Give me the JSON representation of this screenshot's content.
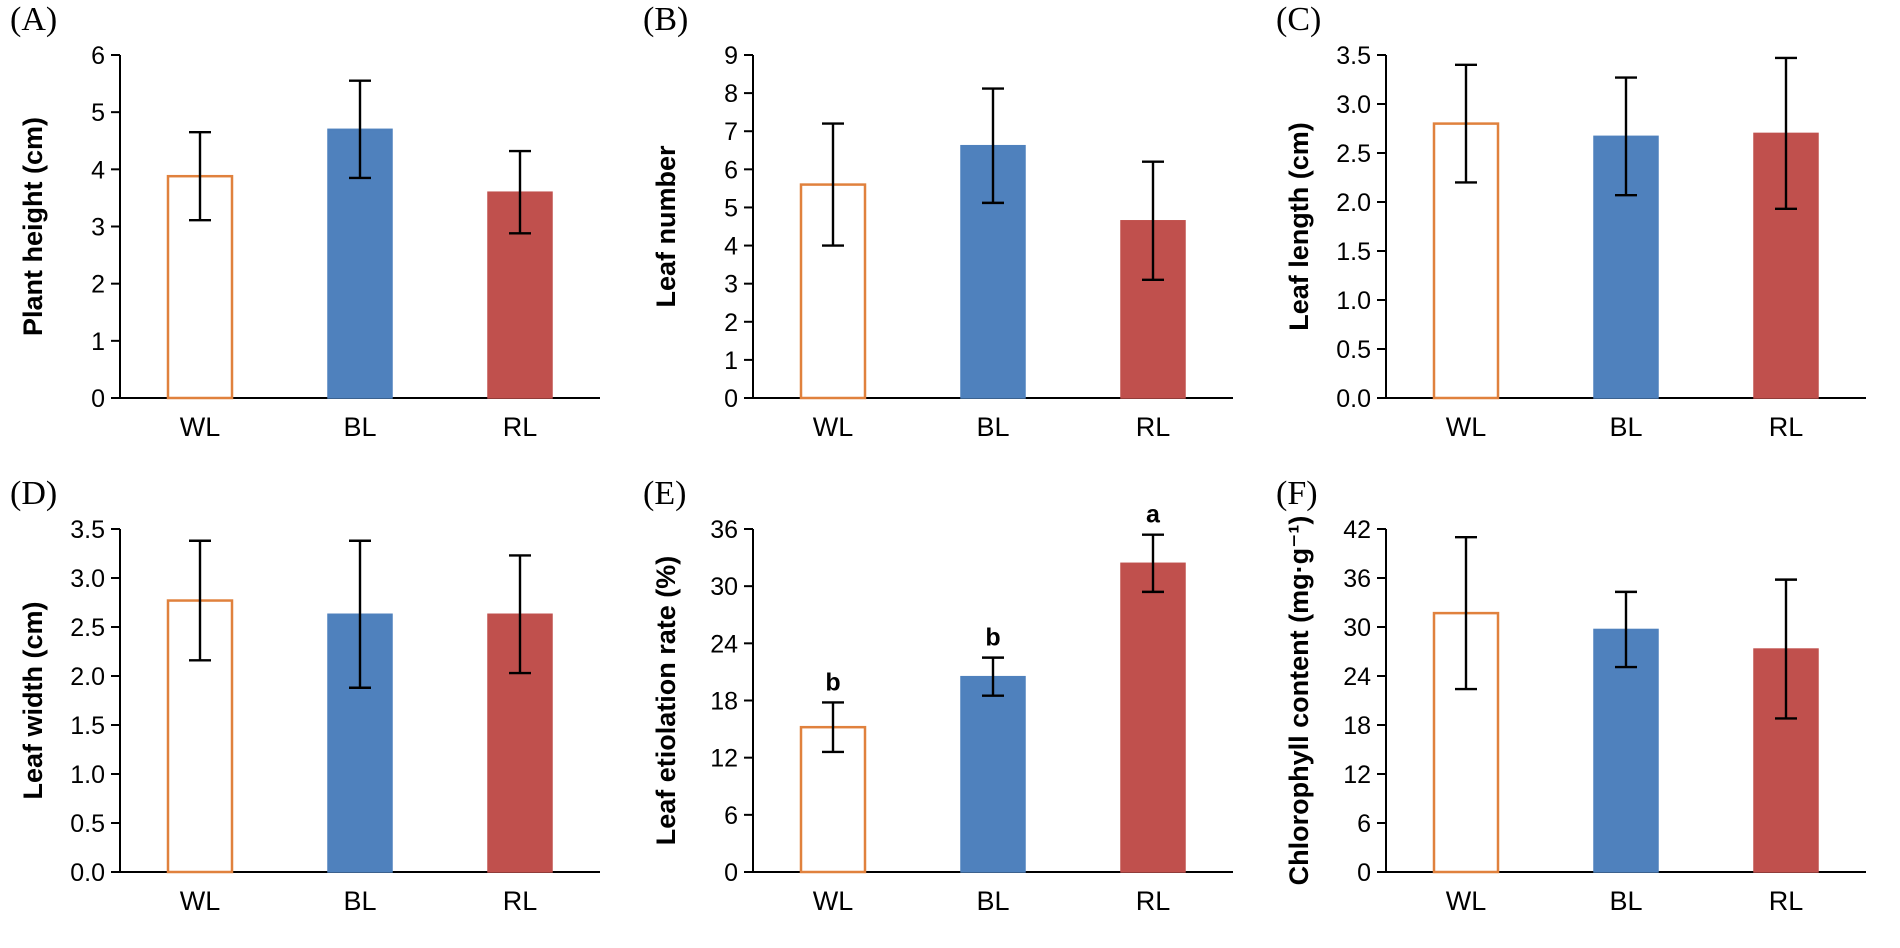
{
  "figure_title": "",
  "categories": [
    "WL",
    "BL",
    "RL"
  ],
  "bar_styles": [
    {
      "category": "WL",
      "fill": "#ffffff",
      "stroke": "#e0813d",
      "stroke_width": 2.5
    },
    {
      "category": "BL",
      "fill": "#4f81bd",
      "stroke": "#4f81bd",
      "stroke_width": 1.5
    },
    {
      "category": "RL",
      "fill": "#c0504d",
      "stroke": "#c0504d",
      "stroke_width": 1.5
    }
  ],
  "colors": {
    "axis": "#000000",
    "error_bar": "#000000",
    "text": "#000000",
    "background": "#ffffff"
  },
  "chart_data": [
    {
      "type": "bar",
      "panel_label": "(A)",
      "ylabel": "Plant height (cm)",
      "xlabel": "",
      "categories": [
        "WL",
        "BL",
        "RL"
      ],
      "values": [
        3.88,
        4.7,
        3.6
      ],
      "errors": [
        0.77,
        0.85,
        0.72
      ],
      "letters": [],
      "ylim": [
        0,
        6
      ],
      "yticks": [
        "0",
        "1",
        "2",
        "3",
        "4",
        "5",
        "6"
      ],
      "grid": false,
      "legend": "none"
    },
    {
      "type": "bar",
      "panel_label": "(B)",
      "ylabel": "Leaf number",
      "xlabel": "",
      "categories": [
        "WL",
        "BL",
        "RL"
      ],
      "values": [
        5.6,
        6.62,
        4.65
      ],
      "errors": [
        1.6,
        1.5,
        1.55
      ],
      "letters": [],
      "ylim": [
        0,
        9
      ],
      "yticks": [
        "0",
        "1",
        "2",
        "3",
        "4",
        "5",
        "6",
        "7",
        "8",
        "9"
      ],
      "grid": false,
      "legend": "none"
    },
    {
      "type": "bar",
      "panel_label": "(C)",
      "ylabel": "Leaf length (cm)",
      "xlabel": "",
      "categories": [
        "WL",
        "BL",
        "RL"
      ],
      "values": [
        2.8,
        2.67,
        2.7
      ],
      "errors": [
        0.6,
        0.6,
        0.77
      ],
      "letters": [],
      "ylim": [
        0,
        3.5
      ],
      "yticks": [
        "0.0",
        "0.5",
        "1.0",
        "1.5",
        "2.0",
        "2.5",
        "3.0",
        "3.5"
      ],
      "grid": false,
      "legend": "none"
    },
    {
      "type": "bar",
      "panel_label": "(D)",
      "ylabel": "Leaf width (cm)",
      "xlabel": "",
      "categories": [
        "WL",
        "BL",
        "RL"
      ],
      "values": [
        2.77,
        2.63,
        2.63
      ],
      "errors": [
        0.61,
        0.75,
        0.6
      ],
      "letters": [],
      "ylim": [
        0,
        3.5
      ],
      "yticks": [
        "0.0",
        "0.5",
        "1.0",
        "1.5",
        "2.0",
        "2.5",
        "3.0",
        "3.5"
      ],
      "grid": false,
      "legend": "none"
    },
    {
      "type": "bar",
      "panel_label": "(E)",
      "ylabel": "Leaf etiolation rate (%)",
      "xlabel": "",
      "categories": [
        "WL",
        "BL",
        "RL"
      ],
      "values": [
        15.2,
        20.5,
        32.4
      ],
      "errors": [
        2.6,
        2.0,
        3.0
      ],
      "letters": [
        "b",
        "b",
        "a"
      ],
      "ylim": [
        0,
        36
      ],
      "yticks": [
        "0",
        "6",
        "12",
        "18",
        "24",
        "30",
        "36"
      ],
      "grid": false,
      "legend": "none"
    },
    {
      "type": "bar",
      "panel_label": "(F)",
      "ylabel": "Chlorophyll content (mg·g⁻¹)",
      "xlabel": "",
      "categories": [
        "WL",
        "BL",
        "RL"
      ],
      "values": [
        31.7,
        29.7,
        27.3
      ],
      "errors": [
        9.3,
        4.6,
        8.5
      ],
      "letters": [],
      "ylim": [
        0,
        42
      ],
      "yticks": [
        "0",
        "6",
        "12",
        "18",
        "24",
        "30",
        "36",
        "42"
      ],
      "grid": false,
      "legend": "none"
    }
  ]
}
